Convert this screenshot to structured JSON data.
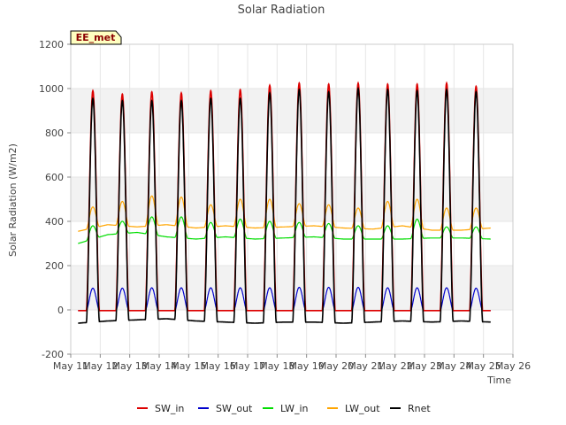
{
  "chart_data": {
    "type": "line",
    "title": "Solar Radiation",
    "xlabel": "Time",
    "ylabel": "Solar Radiation (W/m2)",
    "station_label": "EE_met",
    "ylim": [
      -200,
      1200
    ],
    "xlim": [
      11,
      26
    ],
    "yticks": [
      -200,
      0,
      200,
      400,
      600,
      800,
      1000,
      1200
    ],
    "xticks": [
      {
        "v": 11,
        "label": "May 11"
      },
      {
        "v": 12,
        "label": "May 12"
      },
      {
        "v": 13,
        "label": "May 13"
      },
      {
        "v": 14,
        "label": "May 14"
      },
      {
        "v": 15,
        "label": "May 15"
      },
      {
        "v": 16,
        "label": "May 16"
      },
      {
        "v": 17,
        "label": "May 17"
      },
      {
        "v": 18,
        "label": "May 18"
      },
      {
        "v": 19,
        "label": "May 19"
      },
      {
        "v": 20,
        "label": "May 20"
      },
      {
        "v": 21,
        "label": "May 21"
      },
      {
        "v": 22,
        "label": "May 22"
      },
      {
        "v": 23,
        "label": "May 23"
      },
      {
        "v": 24,
        "label": "May 24"
      },
      {
        "v": 25,
        "label": "May 25"
      },
      {
        "v": 26,
        "label": "May 26"
      }
    ],
    "grid": true,
    "legend_position": "bottom",
    "days": [
      "May 11",
      "May 12",
      "May 13",
      "May 14",
      "May 15",
      "May 16",
      "May 17",
      "May 18",
      "May 19",
      "May 20",
      "May 21",
      "May 22",
      "May 23",
      "May 24",
      "May 25"
    ],
    "day_start": 11.25,
    "day_end": 25.25,
    "series": [
      {
        "name": "SW_in",
        "color": "#dd0000",
        "daily_peak": [
          990,
          975,
          985,
          980,
          990,
          995,
          1015,
          1025,
          1020,
          1025,
          1020,
          1020,
          1025,
          1010
        ],
        "night_value": -3
      },
      {
        "name": "SW_out",
        "color": "#0000cc",
        "daily_peak": [
          98,
          98,
          100,
          100,
          100,
          100,
          100,
          102,
          102,
          102,
          100,
          100,
          100,
          98
        ],
        "night_value": -3
      },
      {
        "name": "LW_in",
        "color": "#00dd00",
        "daily_peak": [
          380,
          400,
          420,
          420,
          395,
          410,
          400,
          395,
          390,
          380,
          380,
          410,
          375,
          375
        ],
        "night_value": [
          300,
          340,
          350,
          330,
          320,
          330,
          320,
          325,
          330,
          320,
          320,
          320,
          325,
          325,
          320
        ]
      },
      {
        "name": "LW_out",
        "color": "#ffa500",
        "daily_peak": [
          465,
          490,
          515,
          510,
          475,
          500,
          500,
          480,
          475,
          460,
          490,
          500,
          460,
          460
        ],
        "night_value": [
          355,
          385,
          375,
          385,
          370,
          380,
          370,
          375,
          380,
          370,
          365,
          380,
          360,
          360,
          370
        ]
      },
      {
        "name": "Rnet",
        "color": "#000000",
        "daily_peak": [
          955,
          945,
          945,
          945,
          955,
          955,
          980,
          995,
          985,
          1000,
          995,
          990,
          995,
          985
        ],
        "night_value": [
          -60,
          -50,
          -45,
          -40,
          -50,
          -55,
          -60,
          -55,
          -55,
          -60,
          -55,
          -50,
          -55,
          -50,
          -55
        ]
      }
    ]
  }
}
